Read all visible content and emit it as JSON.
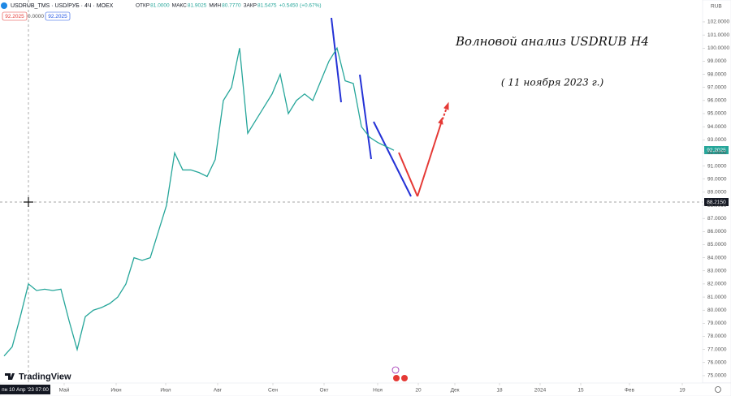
{
  "chart_data": {
    "type": "line",
    "symbol": "USDRUB_TMS · USD/РУБ · 4Ч · MOEX",
    "ohlc": [
      {
        "label": "ОТКР",
        "value": "81.0000"
      },
      {
        "label": "МАКС",
        "value": "81.9025"
      },
      {
        "label": "МИН",
        "value": "80.7770"
      },
      {
        "label": "ЗАКР",
        "value": "81.5475"
      }
    ],
    "change": "+0.5450 (+0.67%)",
    "badges": [
      "92.2025",
      "0.0000",
      "92.2025"
    ],
    "title": "Волновой анализ USDRUB H4",
    "subtitle": "( 11 ноября 2023 г.)",
    "currency": "RUB",
    "last_price": "92.2025",
    "crosshair_price": "88.2150",
    "crosshair_time": "пн 10 Апр '23  07:00",
    "logo": "TradingView",
    "color": "#26a69a",
    "categories": [
      null,
      null,
      null,
      null,
      null,
      null,
      null,
      null,
      null,
      null,
      null,
      null,
      null,
      null,
      null,
      null,
      null,
      null,
      null,
      null,
      null,
      null,
      null,
      null,
      null,
      null,
      null,
      null,
      null,
      null,
      null,
      null,
      null,
      null,
      null,
      null,
      null,
      null,
      null,
      null,
      null,
      null,
      null,
      null,
      null,
      null,
      null,
      null,
      null
    ],
    "values": [
      76.5,
      77.2,
      79.5,
      82.0,
      81.5,
      81.6,
      81.5,
      81.6,
      79.2,
      77.0,
      79.5,
      80.0,
      80.2,
      80.5,
      81.0,
      82.0,
      84.0,
      83.8,
      84.0,
      86.0,
      88.0,
      92.0,
      90.7,
      90.7,
      90.5,
      90.2,
      91.5,
      96.0,
      97.0,
      100.0,
      93.5,
      94.5,
      95.5,
      96.5,
      98.0,
      95.0,
      96.0,
      96.5,
      96.0,
      97.5,
      99.0,
      100.0,
      97.5,
      97.3,
      94.0,
      93.2,
      92.8,
      92.5,
      92.2
    ],
    "xlim": [
      -0.5,
      86
    ],
    "xticks": [
      {
        "value": 7.4,
        "label": "Май"
      },
      {
        "value": 13.8,
        "label": "Июн"
      },
      {
        "value": 19.9,
        "label": "Июл"
      },
      {
        "value": 26.3,
        "label": "Авг"
      },
      {
        "value": 33.1,
        "label": "Сен"
      },
      {
        "value": 39.4,
        "label": "Окт"
      },
      {
        "value": 46,
        "label": "Ноя"
      },
      {
        "value": 51,
        "label": "20"
      },
      {
        "value": 55.5,
        "label": "Дек"
      },
      {
        "value": 61,
        "label": "18"
      },
      {
        "value": 66,
        "label": "2024"
      },
      {
        "value": 71,
        "label": "15"
      },
      {
        "value": 77,
        "label": "Фев"
      },
      {
        "value": 83.5,
        "label": "19"
      }
    ],
    "ylim": [
      74.44,
      103.67
    ],
    "yticks": [
      {
        "value": 75,
        "label": "75.0000"
      },
      {
        "value": 76,
        "label": "76.0000"
      },
      {
        "value": 77,
        "label": "77.0000"
      },
      {
        "value": 78,
        "label": "78.0000"
      },
      {
        "value": 79,
        "label": "79.0000"
      },
      {
        "value": 80,
        "label": "80.0000"
      },
      {
        "value": 81,
        "label": "81.0000"
      },
      {
        "value": 82,
        "label": "82.0000"
      },
      {
        "value": 83,
        "label": "83.0000"
      },
      {
        "value": 84,
        "label": "84.0000"
      },
      {
        "value": 85,
        "label": "85.0000"
      },
      {
        "value": 86,
        "label": "86.0000"
      },
      {
        "value": 87,
        "label": "87.0000"
      },
      {
        "value": 88,
        "label": "88.0000"
      },
      {
        "value": 89,
        "label": "89.0000"
      },
      {
        "value": 90,
        "label": "90.0000"
      },
      {
        "value": 91,
        "label": "91.0000"
      },
      {
        "value": 92,
        "label": "92.0000"
      },
      {
        "value": 93,
        "label": "93.0000"
      },
      {
        "value": 94,
        "label": "94.0000"
      },
      {
        "value": 95,
        "label": "95.0000"
      },
      {
        "value": 96,
        "label": "96.0000"
      },
      {
        "value": 97,
        "label": "97.0000"
      },
      {
        "value": 98,
        "label": "98.0000"
      },
      {
        "value": 99,
        "label": "99.0000"
      },
      {
        "value": 100,
        "label": "100.0000"
      },
      {
        "value": 101,
        "label": "101.0000"
      },
      {
        "value": 102,
        "label": "102.0000"
      }
    ],
    "grid": false
  }
}
